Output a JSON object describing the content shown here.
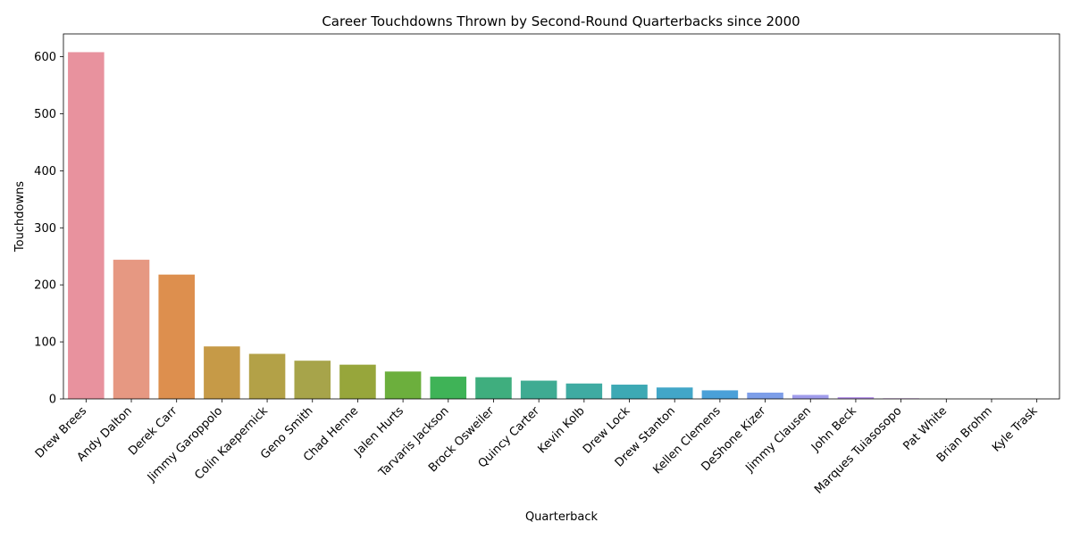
{
  "chart_data": {
    "type": "bar",
    "title": "Career Touchdowns Thrown by Second-Round Quarterbacks since 2000",
    "xlabel": "Quarterback",
    "ylabel": "Touchdowns",
    "ylim": [
      0,
      640
    ],
    "yticks": [
      0,
      100,
      200,
      300,
      400,
      500,
      600
    ],
    "grid": false,
    "categories": [
      "Drew Brees",
      "Andy Dalton",
      "Derek Carr",
      "Jimmy Garoppolo",
      "Colin Kaepernick",
      "Geno Smith",
      "Chad Henne",
      "Jalen Hurts",
      "Tarvaris Jackson",
      "Brock Osweiler",
      "Quincy Carter",
      "Kevin Kolb",
      "Drew Lock",
      "Drew Stanton",
      "Kellen Clemens",
      "DeShone Kizer",
      "Jimmy Clausen",
      "John Beck",
      "Marques Tuiasosopo",
      "Pat White",
      "Brian Brohm",
      "Kyle Trask"
    ],
    "values": [
      608,
      244,
      218,
      92,
      79,
      67,
      60,
      48,
      39,
      38,
      32,
      27,
      25,
      20,
      15,
      11,
      7,
      3,
      1,
      0,
      0,
      0
    ],
    "colors": [
      "#e8929e",
      "#e69882",
      "#dd8f4e",
      "#c69a47",
      "#b3a147",
      "#a7a44a",
      "#97a63b",
      "#6caf3d",
      "#3fb357",
      "#3fae7e",
      "#3fab92",
      "#3faba2",
      "#3da9b4",
      "#42a6c8",
      "#4aa0d8",
      "#7d9ee8",
      "#a09ceb",
      "#b792e8",
      "#c58ce6",
      "#de86da",
      "#e68ac8",
      "#e88eb3"
    ]
  }
}
